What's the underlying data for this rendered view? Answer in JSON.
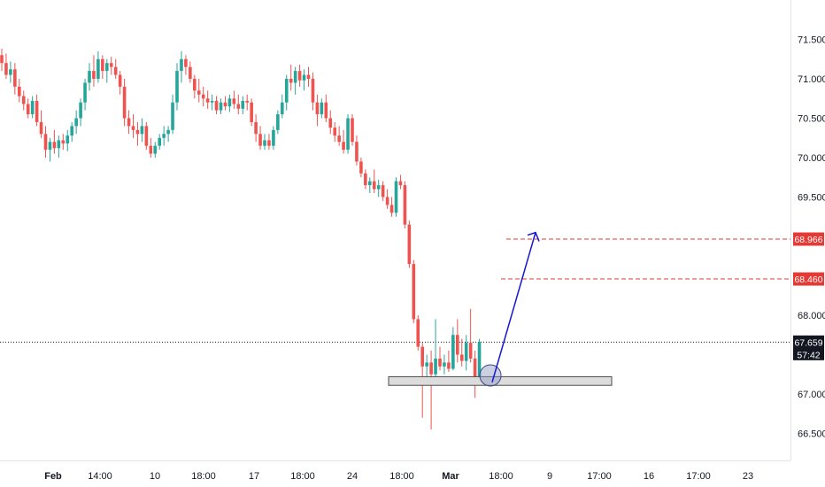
{
  "chart_data": {
    "type": "candlestick",
    "y_axis": {
      "min": 66.25,
      "max": 71.95,
      "ticks": [
        "71.500",
        "71.000",
        "70.500",
        "70.000",
        "69.500",
        "68.000",
        "67.000",
        "66.500"
      ]
    },
    "x_axis": {
      "ticks": [
        "Feb",
        "14:00",
        "10",
        "18:00",
        "17",
        "18:00",
        "24",
        "18:00",
        "Mar",
        "18:00",
        "9",
        "17:00",
        "16",
        "17:00",
        "23"
      ]
    },
    "current_price": {
      "value": 67.659,
      "label": "67.659",
      "countdown": "57:42"
    },
    "levels": [
      {
        "label": "68.966",
        "value": 68.966
      },
      {
        "label": "68.460",
        "value": 68.46
      }
    ],
    "support_zone": {
      "low": 67.11,
      "high": 67.22
    },
    "projection": {
      "from": 67.15,
      "to": 69.05
    },
    "colors": {
      "up": "#26a69a",
      "down": "#ef5350",
      "level": "#e53935",
      "arrow": "#1515d4",
      "zone_fill": "#dcdcdc",
      "price_tag": "#131722"
    },
    "series": [
      {
        "o": 71.3,
        "h": 71.38,
        "l": 71.1,
        "c": 71.2
      },
      {
        "o": 71.2,
        "h": 71.32,
        "l": 71.0,
        "c": 71.05
      },
      {
        "o": 71.05,
        "h": 71.22,
        "l": 70.95,
        "c": 71.12
      },
      {
        "o": 71.12,
        "h": 71.2,
        "l": 70.8,
        "c": 70.9
      },
      {
        "o": 70.9,
        "h": 71.0,
        "l": 70.7,
        "c": 70.78
      },
      {
        "o": 70.78,
        "h": 70.85,
        "l": 70.6,
        "c": 70.68
      },
      {
        "o": 70.68,
        "h": 70.75,
        "l": 70.5,
        "c": 70.55
      },
      {
        "o": 70.55,
        "h": 70.78,
        "l": 70.5,
        "c": 70.72
      },
      {
        "o": 70.72,
        "h": 70.8,
        "l": 70.4,
        "c": 70.45
      },
      {
        "o": 70.45,
        "h": 70.6,
        "l": 70.25,
        "c": 70.3
      },
      {
        "o": 70.3,
        "h": 70.4,
        "l": 70.0,
        "c": 70.1
      },
      {
        "o": 70.1,
        "h": 70.25,
        "l": 69.95,
        "c": 70.2
      },
      {
        "o": 70.2,
        "h": 70.35,
        "l": 70.05,
        "c": 70.12
      },
      {
        "o": 70.12,
        "h": 70.28,
        "l": 70.0,
        "c": 70.22
      },
      {
        "o": 70.22,
        "h": 70.3,
        "l": 70.1,
        "c": 70.18
      },
      {
        "o": 70.18,
        "h": 70.35,
        "l": 70.08,
        "c": 70.28
      },
      {
        "o": 70.28,
        "h": 70.45,
        "l": 70.2,
        "c": 70.4
      },
      {
        "o": 70.4,
        "h": 70.6,
        "l": 70.3,
        "c": 70.5
      },
      {
        "o": 70.5,
        "h": 70.75,
        "l": 70.4,
        "c": 70.7
      },
      {
        "o": 70.7,
        "h": 71.0,
        "l": 70.6,
        "c": 70.95
      },
      {
        "o": 70.95,
        "h": 71.2,
        "l": 70.85,
        "c": 71.1
      },
      {
        "o": 71.1,
        "h": 71.3,
        "l": 70.9,
        "c": 71.0
      },
      {
        "o": 71.0,
        "h": 71.35,
        "l": 70.95,
        "c": 71.25
      },
      {
        "o": 71.25,
        "h": 71.3,
        "l": 71.0,
        "c": 71.1
      },
      {
        "o": 71.1,
        "h": 71.25,
        "l": 70.95,
        "c": 71.2
      },
      {
        "o": 71.2,
        "h": 71.28,
        "l": 71.05,
        "c": 71.15
      },
      {
        "o": 71.15,
        "h": 71.25,
        "l": 71.0,
        "c": 71.05
      },
      {
        "o": 71.05,
        "h": 71.1,
        "l": 70.8,
        "c": 70.9
      },
      {
        "o": 70.9,
        "h": 71.0,
        "l": 70.4,
        "c": 70.5
      },
      {
        "o": 70.5,
        "h": 70.6,
        "l": 70.3,
        "c": 70.4
      },
      {
        "o": 70.4,
        "h": 70.55,
        "l": 70.25,
        "c": 70.35
      },
      {
        "o": 70.35,
        "h": 70.45,
        "l": 70.15,
        "c": 70.3
      },
      {
        "o": 70.3,
        "h": 70.5,
        "l": 70.2,
        "c": 70.4
      },
      {
        "o": 70.4,
        "h": 70.45,
        "l": 70.1,
        "c": 70.15
      },
      {
        "o": 70.15,
        "h": 70.25,
        "l": 70.0,
        "c": 70.05
      },
      {
        "o": 70.05,
        "h": 70.2,
        "l": 70.0,
        "c": 70.15
      },
      {
        "o": 70.15,
        "h": 70.3,
        "l": 70.1,
        "c": 70.25
      },
      {
        "o": 70.25,
        "h": 70.4,
        "l": 70.15,
        "c": 70.3
      },
      {
        "o": 70.3,
        "h": 70.4,
        "l": 70.2,
        "c": 70.35
      },
      {
        "o": 70.35,
        "h": 70.8,
        "l": 70.3,
        "c": 70.7
      },
      {
        "o": 70.7,
        "h": 71.2,
        "l": 70.6,
        "c": 71.1
      },
      {
        "o": 71.1,
        "h": 71.35,
        "l": 70.95,
        "c": 71.25
      },
      {
        "o": 71.25,
        "h": 71.3,
        "l": 71.05,
        "c": 71.15
      },
      {
        "o": 71.15,
        "h": 71.22,
        "l": 70.95,
        "c": 71.0
      },
      {
        "o": 71.0,
        "h": 71.05,
        "l": 70.75,
        "c": 70.85
      },
      {
        "o": 70.85,
        "h": 71.0,
        "l": 70.7,
        "c": 70.8
      },
      {
        "o": 70.8,
        "h": 70.9,
        "l": 70.65,
        "c": 70.75
      },
      {
        "o": 70.75,
        "h": 70.85,
        "l": 70.62,
        "c": 70.7
      },
      {
        "o": 70.7,
        "h": 70.8,
        "l": 70.6,
        "c": 70.72
      },
      {
        "o": 70.72,
        "h": 70.78,
        "l": 70.55,
        "c": 70.6
      },
      {
        "o": 70.6,
        "h": 70.75,
        "l": 70.55,
        "c": 70.7
      },
      {
        "o": 70.7,
        "h": 70.78,
        "l": 70.6,
        "c": 70.65
      },
      {
        "o": 70.65,
        "h": 70.8,
        "l": 70.58,
        "c": 70.75
      },
      {
        "o": 70.75,
        "h": 70.85,
        "l": 70.62,
        "c": 70.68
      },
      {
        "o": 70.68,
        "h": 70.8,
        "l": 70.55,
        "c": 70.62
      },
      {
        "o": 70.62,
        "h": 70.78,
        "l": 70.55,
        "c": 70.72
      },
      {
        "o": 70.72,
        "h": 70.8,
        "l": 70.6,
        "c": 70.7
      },
      {
        "o": 70.7,
        "h": 70.75,
        "l": 70.4,
        "c": 70.45
      },
      {
        "o": 70.45,
        "h": 70.55,
        "l": 70.2,
        "c": 70.3
      },
      {
        "o": 70.3,
        "h": 70.4,
        "l": 70.1,
        "c": 70.15
      },
      {
        "o": 70.15,
        "h": 70.3,
        "l": 70.1,
        "c": 70.22
      },
      {
        "o": 70.22,
        "h": 70.3,
        "l": 70.1,
        "c": 70.15
      },
      {
        "o": 70.15,
        "h": 70.4,
        "l": 70.1,
        "c": 70.35
      },
      {
        "o": 70.35,
        "h": 70.6,
        "l": 70.3,
        "c": 70.55
      },
      {
        "o": 70.55,
        "h": 70.8,
        "l": 70.5,
        "c": 70.7
      },
      {
        "o": 70.7,
        "h": 71.05,
        "l": 70.6,
        "c": 71.0
      },
      {
        "o": 71.0,
        "h": 71.18,
        "l": 70.85,
        "c": 70.95
      },
      {
        "o": 70.95,
        "h": 71.15,
        "l": 70.8,
        "c": 71.1
      },
      {
        "o": 71.1,
        "h": 71.18,
        "l": 70.9,
        "c": 70.98
      },
      {
        "o": 70.98,
        "h": 71.12,
        "l": 70.85,
        "c": 71.05
      },
      {
        "o": 71.05,
        "h": 71.15,
        "l": 70.9,
        "c": 71.0
      },
      {
        "o": 71.0,
        "h": 71.08,
        "l": 70.6,
        "c": 70.7
      },
      {
        "o": 70.7,
        "h": 70.8,
        "l": 70.4,
        "c": 70.55
      },
      {
        "o": 70.55,
        "h": 70.75,
        "l": 70.5,
        "c": 70.7
      },
      {
        "o": 70.7,
        "h": 70.8,
        "l": 70.45,
        "c": 70.5
      },
      {
        "o": 70.5,
        "h": 70.6,
        "l": 70.3,
        "c": 70.38
      },
      {
        "o": 70.38,
        "h": 70.45,
        "l": 70.2,
        "c": 70.28
      },
      {
        "o": 70.28,
        "h": 70.4,
        "l": 70.15,
        "c": 70.2
      },
      {
        "o": 70.2,
        "h": 70.35,
        "l": 70.05,
        "c": 70.1
      },
      {
        "o": 70.1,
        "h": 70.55,
        "l": 70.05,
        "c": 70.5
      },
      {
        "o": 70.5,
        "h": 70.55,
        "l": 70.15,
        "c": 70.2
      },
      {
        "o": 70.2,
        "h": 70.28,
        "l": 69.9,
        "c": 69.95
      },
      {
        "o": 69.95,
        "h": 70.0,
        "l": 69.75,
        "c": 69.8
      },
      {
        "o": 69.8,
        "h": 69.85,
        "l": 69.6,
        "c": 69.65
      },
      {
        "o": 69.65,
        "h": 69.75,
        "l": 69.55,
        "c": 69.7
      },
      {
        "o": 69.7,
        "h": 69.85,
        "l": 69.55,
        "c": 69.6
      },
      {
        "o": 69.6,
        "h": 69.72,
        "l": 69.5,
        "c": 69.65
      },
      {
        "o": 69.65,
        "h": 69.7,
        "l": 69.45,
        "c": 69.5
      },
      {
        "o": 69.5,
        "h": 69.6,
        "l": 69.35,
        "c": 69.4
      },
      {
        "o": 69.4,
        "h": 69.5,
        "l": 69.25,
        "c": 69.3
      },
      {
        "o": 69.3,
        "h": 69.75,
        "l": 69.25,
        "c": 69.7
      },
      {
        "o": 69.7,
        "h": 69.78,
        "l": 69.6,
        "c": 69.65
      },
      {
        "o": 69.65,
        "h": 69.7,
        "l": 69.1,
        "c": 69.15
      },
      {
        "o": 69.15,
        "h": 69.2,
        "l": 68.6,
        "c": 68.65
      },
      {
        "o": 68.65,
        "h": 68.7,
        "l": 67.9,
        "c": 67.95
      },
      {
        "o": 67.95,
        "h": 68.0,
        "l": 67.55,
        "c": 67.6
      },
      {
        "o": 67.6,
        "h": 67.65,
        "l": 66.7,
        "c": 67.35
      },
      {
        "o": 67.35,
        "h": 67.5,
        "l": 67.2,
        "c": 67.4
      },
      {
        "o": 67.4,
        "h": 67.55,
        "l": 66.55,
        "c": 67.25
      },
      {
        "o": 67.25,
        "h": 67.95,
        "l": 67.2,
        "c": 67.45
      },
      {
        "o": 67.45,
        "h": 67.6,
        "l": 67.3,
        "c": 67.35
      },
      {
        "o": 67.35,
        "h": 67.5,
        "l": 67.25,
        "c": 67.4
      },
      {
        "o": 67.4,
        "h": 67.55,
        "l": 67.28,
        "c": 67.32
      },
      {
        "o": 67.32,
        "h": 67.85,
        "l": 67.3,
        "c": 67.75
      },
      {
        "o": 67.75,
        "h": 67.95,
        "l": 67.4,
        "c": 67.5
      },
      {
        "o": 67.5,
        "h": 67.7,
        "l": 67.35,
        "c": 67.42
      },
      {
        "o": 67.42,
        "h": 67.75,
        "l": 67.3,
        "c": 67.65
      },
      {
        "o": 67.65,
        "h": 68.08,
        "l": 67.4,
        "c": 67.45
      },
      {
        "o": 67.45,
        "h": 67.55,
        "l": 66.95,
        "c": 67.2
      },
      {
        "o": 67.2,
        "h": 67.7,
        "l": 67.15,
        "c": 67.66
      }
    ]
  }
}
